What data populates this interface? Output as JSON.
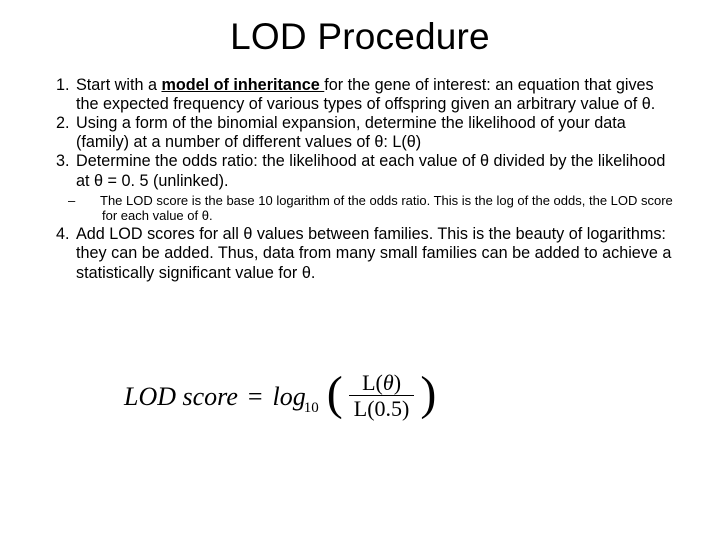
{
  "title": "LOD Procedure",
  "items": {
    "i1a": "Start with a ",
    "i1b": "model of inheritance ",
    "i1c": "for the gene of interest:  an equation that gives the expected frequency of various types of offspring given an arbitrary value of θ.",
    "i2": "Using a form of the binomial expansion, determine the likelihood of your data (family) at a number of different values of θ: L(θ)",
    "i3": "Determine the odds ratio: the likelihood at each value of θ divided by the likelihood at θ = 0. 5 (unlinked).",
    "i3s": "The LOD score is the base 10 logarithm of the odds ratio.  This is the log of the odds, the LOD score for each value of θ.",
    "i4": "Add LOD scores for all θ values between families.  This is the beauty of logarithms: they can be added. Thus, data from many small families can be added to achieve a statistically significant value for θ."
  },
  "formula": {
    "lhs": "LOD score",
    "eq": "=",
    "log": "log",
    "sub": "10",
    "num": "L(θ)",
    "den": "L(0.5)"
  },
  "style": {
    "bg": "#ffffff",
    "fg": "#000000",
    "title_fontsize": 37,
    "body_fontsize": 16.2,
    "sub_fontsize": 13,
    "formula_fontsize": 26
  }
}
